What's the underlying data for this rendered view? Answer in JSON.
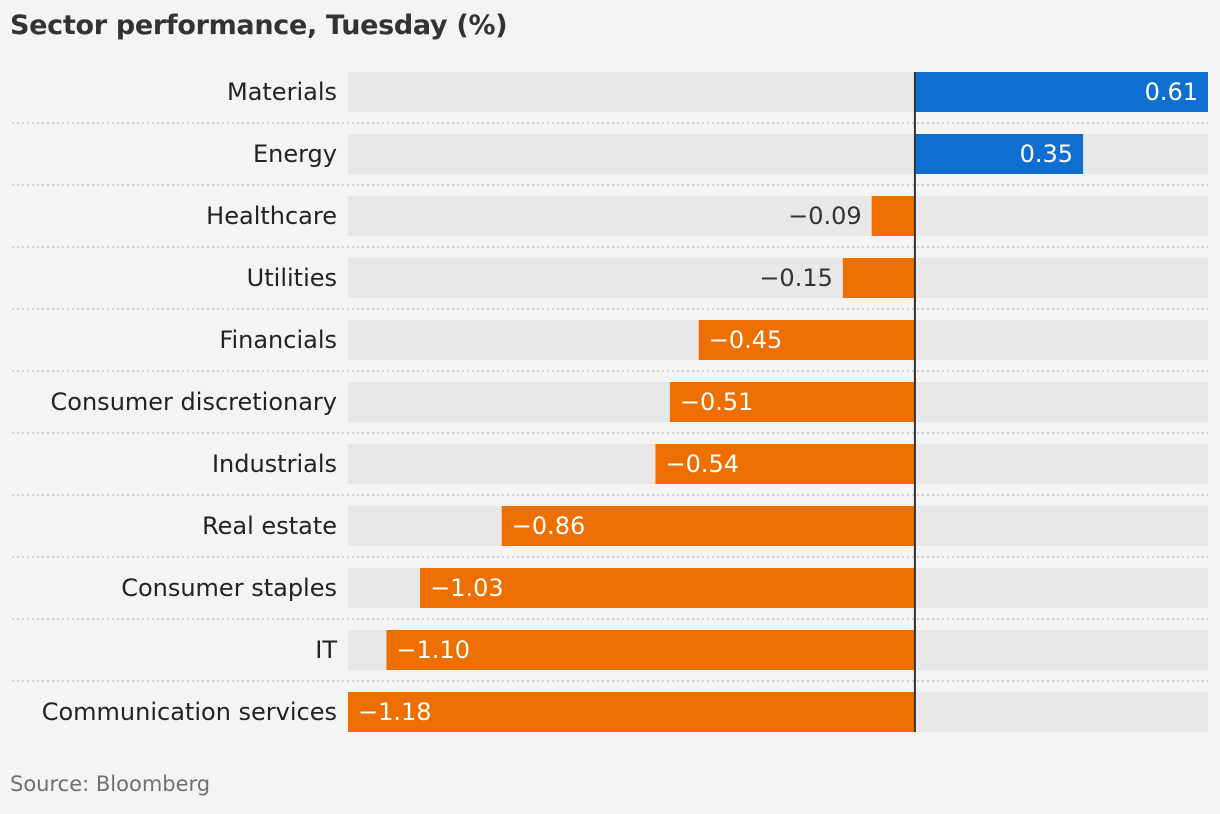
{
  "chart_data": {
    "type": "bar",
    "orientation": "horizontal",
    "title": "Sector performance, Tuesday (%)",
    "source": "Source: Bloomberg",
    "categories": [
      "Materials",
      "Energy",
      "Healthcare",
      "Utilities",
      "Financials",
      "Consumer discretionary",
      "Industrials",
      "Real estate",
      "Consumer staples",
      "IT",
      "Communication services"
    ],
    "values": [
      0.61,
      0.35,
      -0.09,
      -0.15,
      -0.45,
      -0.51,
      -0.54,
      -0.86,
      -1.03,
      -1.1,
      -1.18
    ],
    "value_labels": [
      "0.61",
      "0.35",
      "−0.09",
      "−0.15",
      "−0.45",
      "−0.51",
      "−0.54",
      "−0.86",
      "−1.03",
      "−1.10",
      "−1.18"
    ],
    "xlim": [
      -1.18,
      0.61
    ],
    "grid": false,
    "colors": {
      "positive": "#0f6fd1",
      "negative": "#ec6f00",
      "track": "#e8e8e8",
      "zero_line": "#333333",
      "separator": "#c6c6c6",
      "label_inside": "#ffffff",
      "label_outside": "#333333"
    }
  }
}
